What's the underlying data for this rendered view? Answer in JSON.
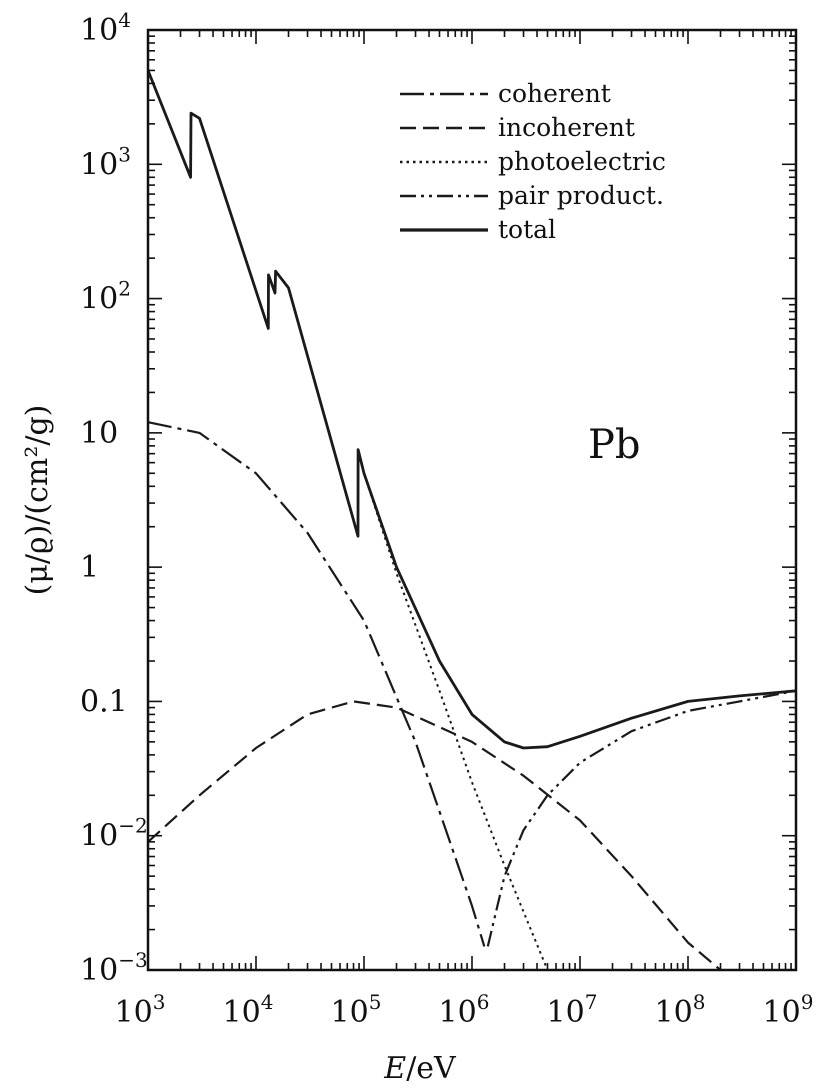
{
  "chart_data": {
    "type": "line",
    "xscale": "log",
    "yscale": "log",
    "xlim": [
      1000,
      1000000000
    ],
    "ylim": [
      0.001,
      10000
    ],
    "x_ticks": [
      {
        "value": 1000,
        "base": "10",
        "exp": "3"
      },
      {
        "value": 10000,
        "base": "10",
        "exp": "4"
      },
      {
        "value": 100000,
        "base": "10",
        "exp": "5"
      },
      {
        "value": 1000000,
        "base": "10",
        "exp": "6"
      },
      {
        "value": 10000000,
        "base": "10",
        "exp": "7"
      },
      {
        "value": 100000000,
        "base": "10",
        "exp": "8"
      },
      {
        "value": 1000000000,
        "base": "10",
        "exp": "9"
      }
    ],
    "y_ticks": [
      {
        "value": 0.001,
        "base": "10",
        "exp": "−3"
      },
      {
        "value": 0.01,
        "base": "10",
        "exp": "−2"
      },
      {
        "value": 0.1,
        "base": "0.1",
        "exp": ""
      },
      {
        "value": 1,
        "base": "1",
        "exp": ""
      },
      {
        "value": 10,
        "base": "10",
        "exp": ""
      },
      {
        "value": 100,
        "base": "10",
        "exp": "2"
      },
      {
        "value": 1000,
        "base": "10",
        "exp": "3"
      },
      {
        "value": 10000,
        "base": "10",
        "exp": "4"
      }
    ],
    "xlabel": {
      "var": "E",
      "unit": "/eV"
    },
    "ylabel": "(μ/ϱ)/(cm²/g)",
    "annotation": "Pb",
    "legend_position": "top-right",
    "grid": false,
    "series": [
      {
        "name": "coherent",
        "style": "long-dash-dot",
        "x": [
          1000,
          3000,
          10000,
          30000,
          100000,
          300000,
          1000000,
          1300000
        ],
        "y": [
          12,
          10,
          5,
          1.8,
          0.4,
          0.05,
          0.003,
          0.0015
        ]
      },
      {
        "name": "incoherent",
        "style": "dash",
        "x": [
          1000,
          3000,
          10000,
          30000,
          80000,
          200000,
          1000000,
          3000000,
          10000000,
          30000000,
          100000000,
          200000000
        ],
        "y": [
          0.009,
          0.02,
          0.045,
          0.08,
          0.1,
          0.09,
          0.05,
          0.028,
          0.013,
          0.005,
          0.0016,
          0.001
        ]
      },
      {
        "name": "photoelectric",
        "style": "dot",
        "x": [
          1000,
          2480,
          2500,
          3000,
          13000,
          13050,
          15000,
          15200,
          20000,
          88000,
          88100,
          100000,
          200000,
          500000,
          1000000,
          2000000,
          5000000
        ],
        "y": [
          5000,
          800,
          2400,
          2200,
          60,
          150,
          110,
          160,
          120,
          1.7,
          7.5,
          5,
          0.9,
          0.12,
          0.025,
          0.006,
          0.001
        ]
      },
      {
        "name": "pair product.",
        "style": "dash-dot-dot",
        "x": [
          1400000,
          2000000,
          3000000,
          5000000,
          10000000,
          30000000,
          100000000,
          300000000,
          1000000000
        ],
        "y": [
          0.0015,
          0.005,
          0.011,
          0.02,
          0.035,
          0.06,
          0.085,
          0.1,
          0.12
        ]
      },
      {
        "name": "total",
        "style": "solid",
        "x": [
          1000,
          2480,
          2500,
          3000,
          13000,
          13050,
          15000,
          15200,
          20000,
          88000,
          88100,
          100000,
          200000,
          500000,
          1000000,
          2000000,
          3000000,
          5000000,
          10000000,
          30000000,
          100000000,
          300000000,
          1000000000
        ],
        "y": [
          5000,
          800,
          2400,
          2200,
          60,
          150,
          110,
          160,
          120,
          1.7,
          7.5,
          5,
          1.0,
          0.2,
          0.08,
          0.05,
          0.045,
          0.046,
          0.055,
          0.075,
          0.1,
          0.11,
          0.12
        ]
      }
    ]
  }
}
